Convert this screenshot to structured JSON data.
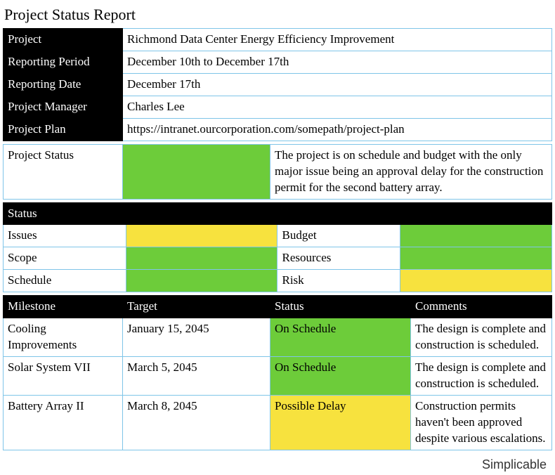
{
  "colors": {
    "header_bg": "#000000",
    "header_fg": "#ffffff",
    "border": "#7fc5e8",
    "green": "#6dcc3a",
    "yellow": "#f7e23e",
    "page_bg": "#ffffff",
    "text": "#000000"
  },
  "title": "Project Status Report",
  "info": {
    "rows": [
      {
        "label": "Project",
        "value": "Richmond Data Center Energy Efficiency Improvement"
      },
      {
        "label": "Reporting Period",
        "value": "December 10th to December 17th"
      },
      {
        "label": "Reporting Date",
        "value": "December 17th"
      },
      {
        "label": "Project Manager",
        "value": "Charles Lee"
      },
      {
        "label": "Project Plan",
        "value": "https://intranet.ourcorporation.com/somepath/project-plan"
      }
    ]
  },
  "project_status": {
    "label": "Project Status",
    "color": "green",
    "summary": "The project is on schedule and budget with the only major issue being an approval delay for the construction permit for the second battery array."
  },
  "status_section": {
    "header": "Status",
    "rows": [
      {
        "left_label": "Issues",
        "left_color": "yellow",
        "right_label": "Budget",
        "right_color": "green"
      },
      {
        "left_label": "Scope",
        "left_color": "green",
        "right_label": "Resources",
        "right_color": "green"
      },
      {
        "left_label": "Schedule",
        "left_color": "green",
        "right_label": "Risk",
        "right_color": "yellow"
      }
    ]
  },
  "milestones": {
    "headers": [
      "Milestone",
      "Target",
      "Status",
      "Comments"
    ],
    "rows": [
      {
        "name": "Cooling Improvements",
        "target": "January 15, 2045",
        "status": "On Schedule",
        "status_color": "green",
        "comments": "The design is complete and construction is scheduled."
      },
      {
        "name": "Solar System VII",
        "target": "March 5, 2045",
        "status": "On Schedule",
        "status_color": "green",
        "comments": "The design is complete and construction is scheduled."
      },
      {
        "name": "Battery Array II",
        "target": "March 8, 2045",
        "status": "Possible Delay",
        "status_color": "yellow",
        "comments": "Construction permits haven't been approved despite various escalations."
      }
    ]
  },
  "footer": "Simplicable"
}
